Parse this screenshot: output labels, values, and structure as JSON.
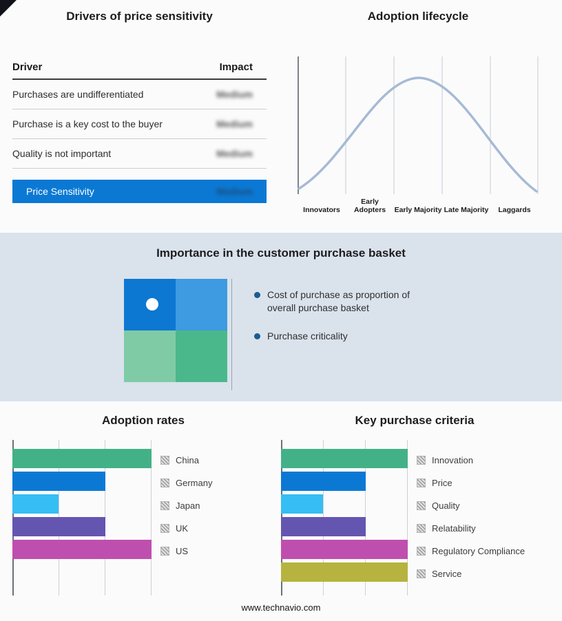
{
  "page": {
    "footer_url": "www.technavio.com"
  },
  "drivers_panel": {
    "title": "Drivers of price sensitivity",
    "accent_color": "#0b79d4",
    "table": {
      "headers": {
        "driver": "Driver",
        "impact": "Impact"
      },
      "rows": [
        {
          "driver": "Purchases are undifferentiated",
          "impact": "Medium"
        },
        {
          "driver": "Purchase is a key cost to the buyer",
          "impact": "Medium"
        },
        {
          "driver": "Quality is not important",
          "impact": "Medium"
        }
      ],
      "summary": {
        "label": "Price Sensitivity",
        "impact": "Medium"
      }
    }
  },
  "lifecycle_panel": {
    "title": "Adoption lifecycle",
    "curve_color": "#a6bad4",
    "stages": [
      "Innovators",
      "Early Adopters",
      "Early Majority",
      "Late Majority",
      "Laggards"
    ]
  },
  "basket_panel": {
    "title": "Importance in the customer purchase basket",
    "bullets": [
      "Cost of purchase as proportion of overall purchase basket",
      "Purchase criticality"
    ],
    "quadrant_colors": {
      "top_left": "#0d78d2",
      "top_right": "#3e9ae1",
      "bottom_left": "#7fcba6",
      "bottom_right": "#4bb88c"
    }
  },
  "chart_data": [
    {
      "type": "bar",
      "orientation": "horizontal",
      "title": "Adoption rates",
      "categories": [
        "China",
        "Germany",
        "Japan",
        "UK",
        "US"
      ],
      "values": [
        3,
        2,
        1,
        2,
        3
      ],
      "xlim": [
        0,
        3
      ],
      "grid": true,
      "legend_position": "right",
      "colors": [
        "#43b187",
        "#0b79d4",
        "#35bef3",
        "#6456b0",
        "#bf4fae"
      ]
    },
    {
      "type": "bar",
      "orientation": "horizontal",
      "title": "Key purchase criteria",
      "categories": [
        "Innovation",
        "Price",
        "Quality",
        "Relatability",
        "Regulatory Compliance",
        "Service"
      ],
      "values": [
        3,
        2,
        1,
        2,
        3,
        3
      ],
      "xlim": [
        0,
        3
      ],
      "grid": true,
      "legend_position": "right",
      "colors": [
        "#43b187",
        "#0b79d4",
        "#35bef3",
        "#6456b0",
        "#bf4fae",
        "#b6b33f"
      ]
    }
  ]
}
